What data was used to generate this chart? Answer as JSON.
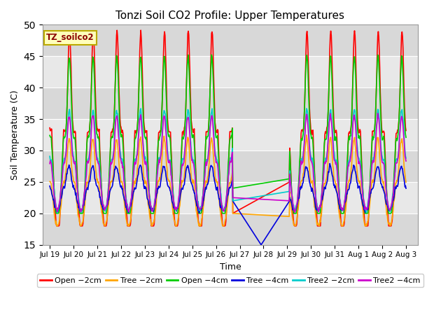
{
  "title": "Tonzi Soil CO2 Profile: Upper Temperatures",
  "xlabel": "Time",
  "ylabel": "Soil Temperature (C)",
  "ylim": [
    15,
    50
  ],
  "annotation_label": "TZ_soilco2",
  "background_color": "#ffffff",
  "plot_bg_color": "#e8e8e8",
  "grid_color": "#ffffff",
  "series": {
    "Open -2cm": {
      "color": "#ff0000",
      "linewidth": 1.2
    },
    "Tree -2cm": {
      "color": "#ffa500",
      "linewidth": 1.2
    },
    "Open -4cm": {
      "color": "#00cc00",
      "linewidth": 1.2
    },
    "Tree -4cm": {
      "color": "#0000dd",
      "linewidth": 1.2
    },
    "Tree2 -2cm": {
      "color": "#00cccc",
      "linewidth": 1.2
    },
    "Tree2 -4cm": {
      "color": "#cc00cc",
      "linewidth": 1.2
    }
  },
  "xtick_labels": [
    "Jul 19",
    "Jul 20",
    "Jul 21",
    "Jul 22",
    "Jul 23",
    "Jul 24",
    "Jul 25",
    "Jul 26",
    "Jul 27",
    "Jul 28",
    "Jul 29",
    "Jul 30",
    "Jul 31",
    "Aug 1",
    "Aug 2",
    "Aug 3"
  ],
  "ytick_values": [
    15,
    20,
    25,
    30,
    35,
    40,
    45,
    50
  ]
}
